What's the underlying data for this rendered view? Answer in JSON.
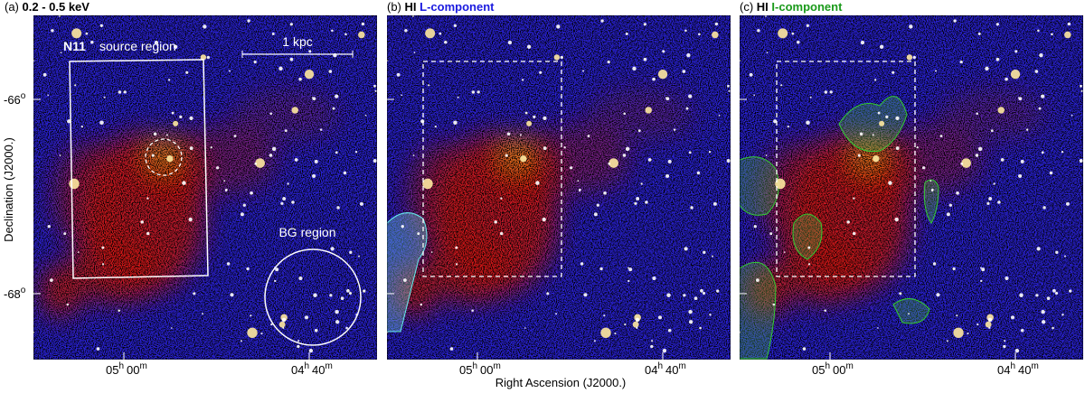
{
  "panels": [
    {
      "label": "(a)",
      "title": "0.2 - 0.5 keV"
    },
    {
      "label": "(b)",
      "prefix": "HI",
      "title": "L-component"
    },
    {
      "label": "(c)",
      "prefix": "HI",
      "title": "I-component"
    }
  ],
  "annotations": {
    "source_name": "N11",
    "source_region": "source region",
    "scale": "1 kpc",
    "bg_region": "BG region"
  },
  "y_axis": {
    "label": "Declination (J2000.)",
    "ticks": [
      {
        "deg": "-66",
        "sup": "o"
      },
      {
        "deg": "-68",
        "sup": "o"
      }
    ]
  },
  "x_axis": {
    "label": "Right Ascension (J2000.)",
    "ticks": [
      {
        "h": "05",
        "hu": "h",
        "m": "00",
        "mu": "m"
      },
      {
        "h": "04",
        "hu": "h",
        "m": "40",
        "mu": "m"
      }
    ]
  }
}
